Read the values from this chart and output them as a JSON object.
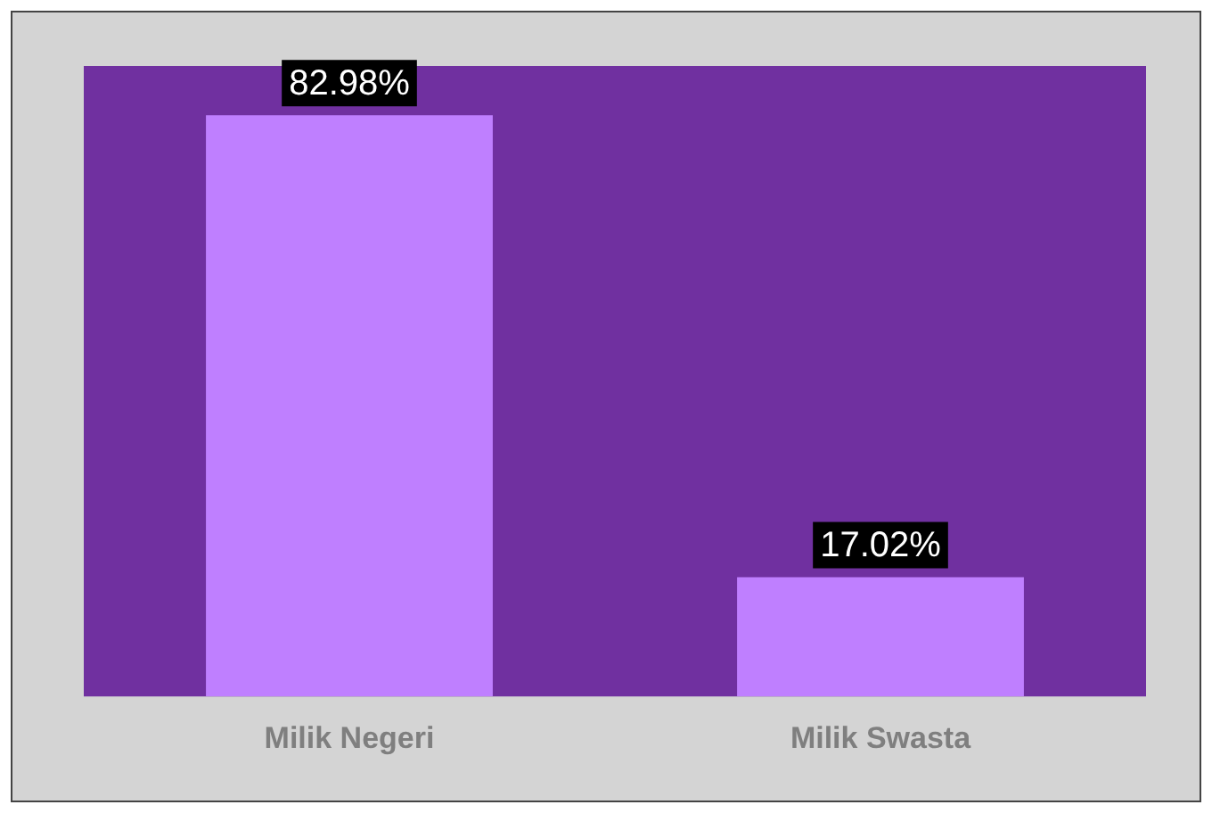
{
  "chart_data": {
    "type": "bar",
    "categories": [
      "Milik Negeri",
      "Milik Swasta"
    ],
    "values": [
      82.98,
      17.02
    ],
    "color": "#bf7fff",
    "value_labels": [
      "82.98%",
      "17.02%"
    ],
    "grid": false,
    "legend": false
  }
}
